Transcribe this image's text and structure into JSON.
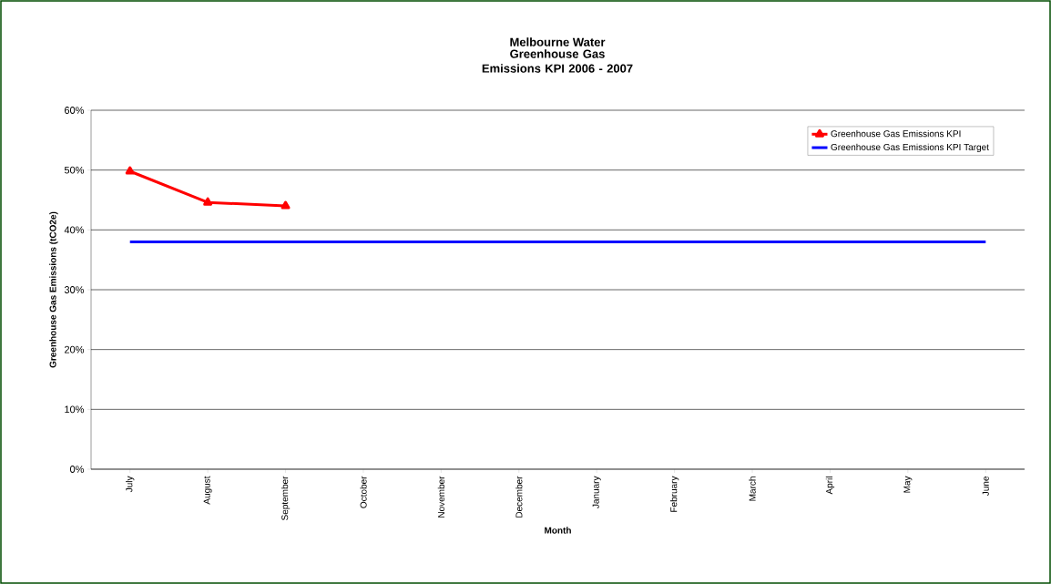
{
  "chart_data": {
    "type": "line",
    "title": "Melbourne Water",
    "subtitle": "Greenhouse Gas Emissions KPI 2006 - 2007",
    "xlabel": "Month",
    "ylabel": "Greenhouse Gas Emissions (tCO2e)",
    "categories": [
      "July",
      "August",
      "September",
      "October",
      "November",
      "December",
      "January",
      "February",
      "March",
      "April",
      "May",
      "June"
    ],
    "series": [
      {
        "name": "Greenhouse Gas Emissions KPI",
        "color": "#ff0000",
        "marker": "triangle",
        "values": [
          49.8,
          44.6,
          44.0,
          null,
          null,
          null,
          null,
          null,
          null,
          null,
          null,
          null
        ]
      },
      {
        "name": "Greenhouse Gas Emissions KPI Target",
        "color": "#0000ff",
        "marker": "none",
        "values": [
          38,
          38,
          38,
          38,
          38,
          38,
          38,
          38,
          38,
          38,
          38,
          38
        ]
      }
    ],
    "ylim": [
      0,
      60
    ],
    "yticks": [
      {
        "value": 0,
        "label": "0%"
      },
      {
        "value": 10,
        "label": "10%"
      },
      {
        "value": 20,
        "label": "20%"
      },
      {
        "value": 30,
        "label": "30%"
      },
      {
        "value": 40,
        "label": "40%"
      },
      {
        "value": 50,
        "label": "50%"
      },
      {
        "value": 60,
        "label": "60%"
      }
    ],
    "grid": "y",
    "legend": "top right",
    "line_style": "solid"
  }
}
